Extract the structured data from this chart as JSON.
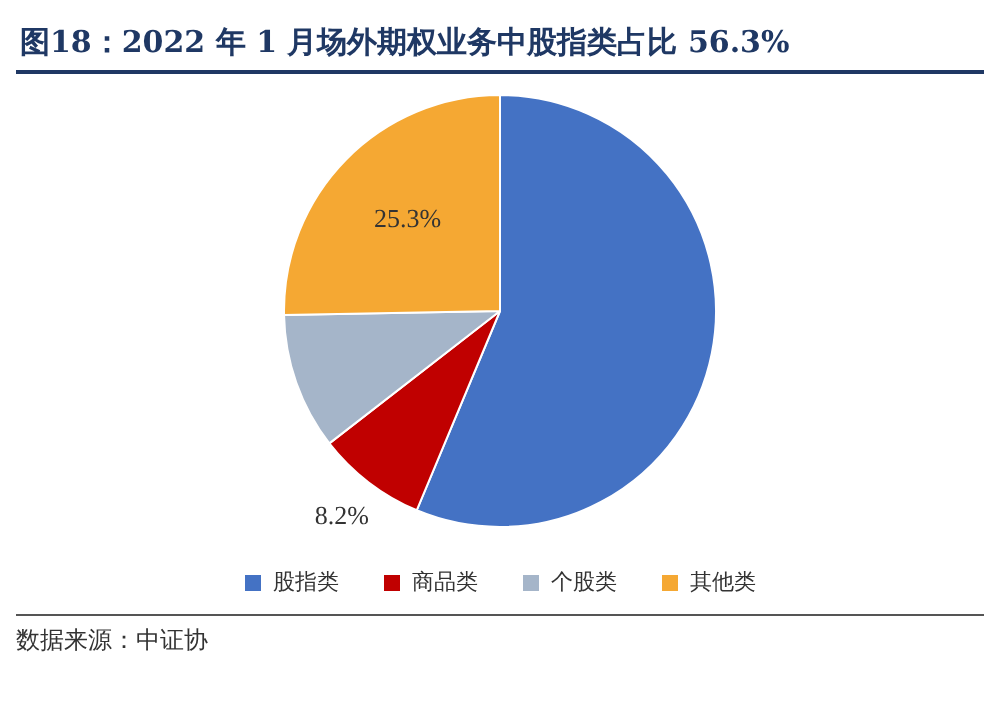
{
  "chart_data": {
    "type": "pie",
    "title": "图18：2022 年 1 月场外期权业务中股指类占比 56.3%",
    "categories": [
      "股指类",
      "商品类",
      "个股类",
      "其他类"
    ],
    "values": [
      56.3,
      8.2,
      10.2,
      25.3
    ],
    "value_labels": [
      null,
      "8.2%",
      null,
      "25.3%"
    ],
    "colors": [
      "#4472c4",
      "#c00000",
      "#a5b5c9",
      "#f5a833"
    ],
    "legend": "bottom",
    "annotations": [
      "数据来源：中证协"
    ]
  }
}
